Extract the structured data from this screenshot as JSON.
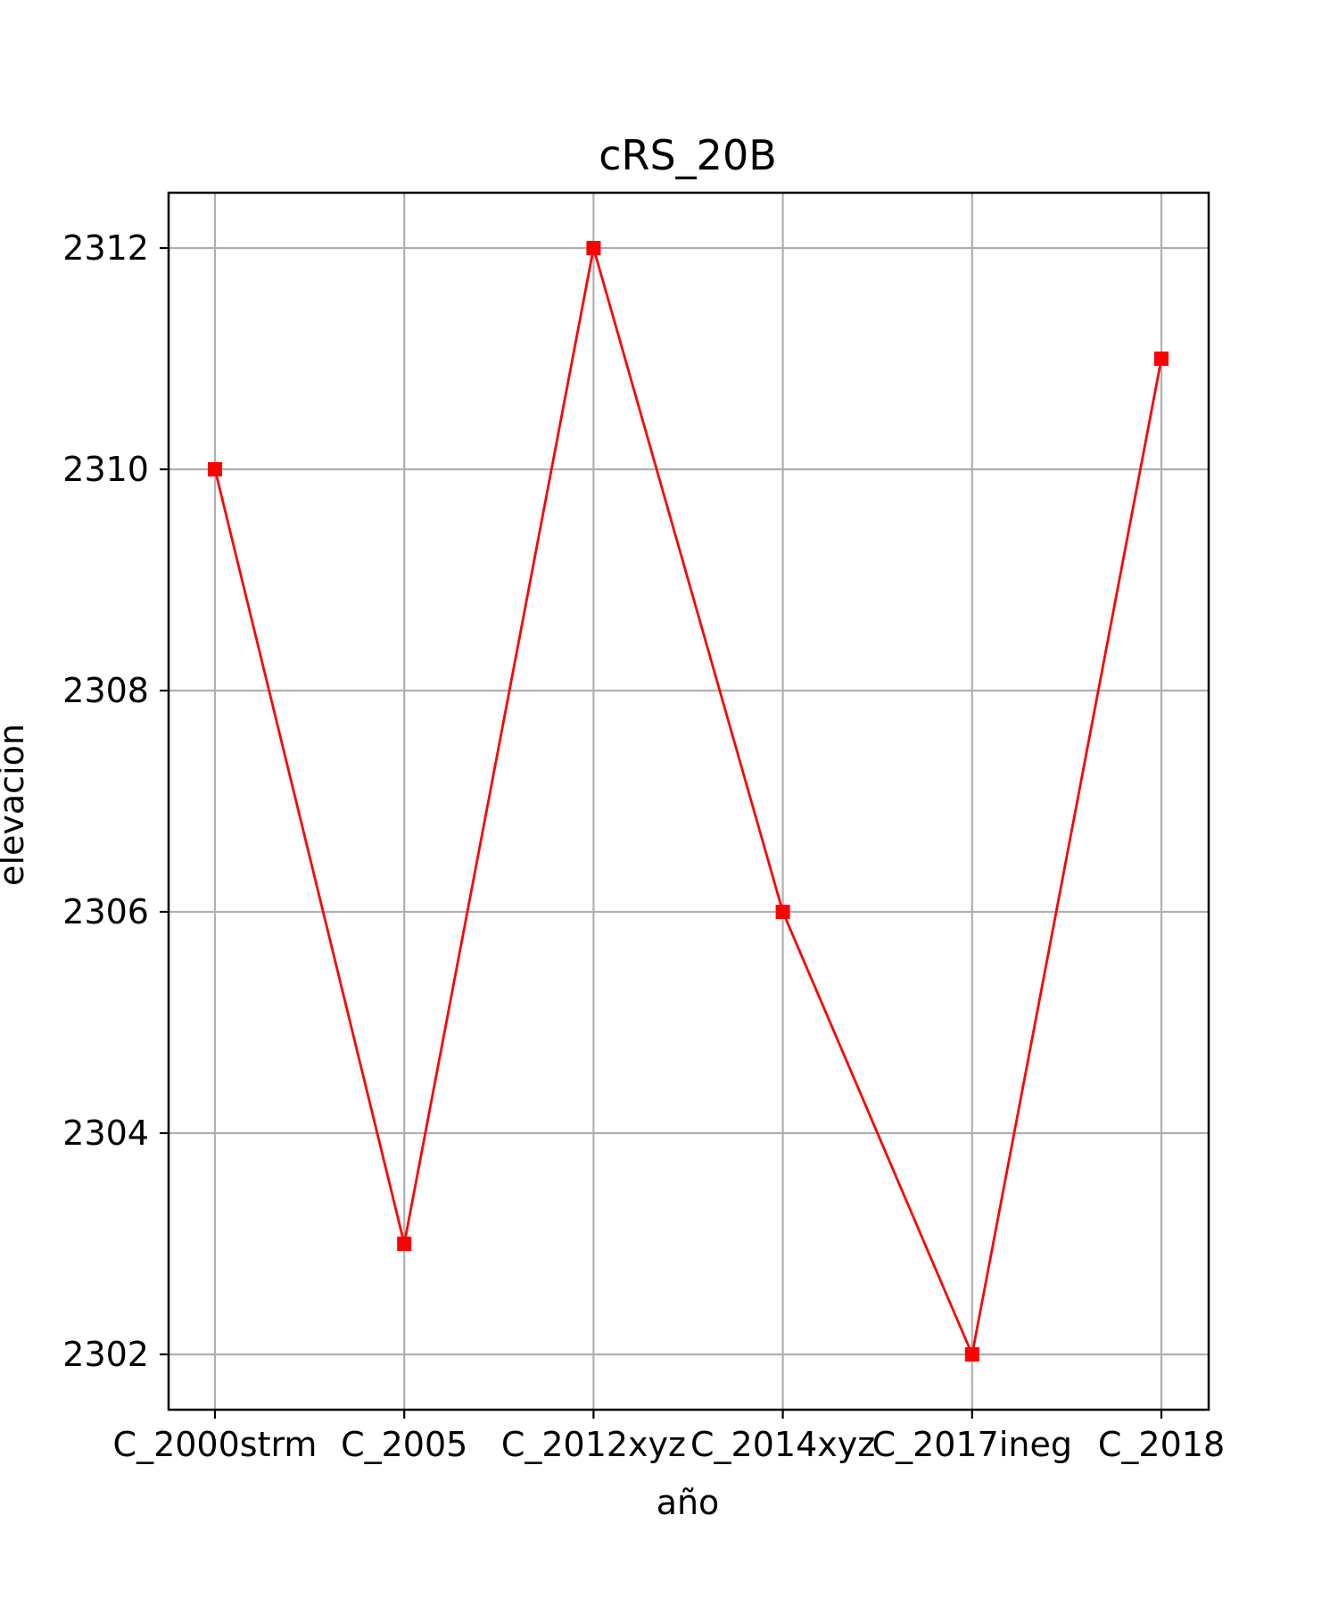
{
  "chart_data": {
    "type": "line",
    "title": "cRS_20B",
    "xlabel": "año",
    "ylabel": "elevacion",
    "categories": [
      "C_2000strm",
      "C_2005",
      "C_2012xyz",
      "C_2014xyz",
      "C_2017ineg",
      "C_2018"
    ],
    "series": [
      {
        "values": [
          2310,
          2303,
          2312,
          2306,
          2302,
          2311
        ],
        "color": "#ff0000",
        "marker": "square"
      }
    ],
    "yticks": [
      2302,
      2304,
      2306,
      2308,
      2310,
      2312
    ],
    "ylim": [
      2301.5,
      2312.5
    ],
    "grid": true
  }
}
